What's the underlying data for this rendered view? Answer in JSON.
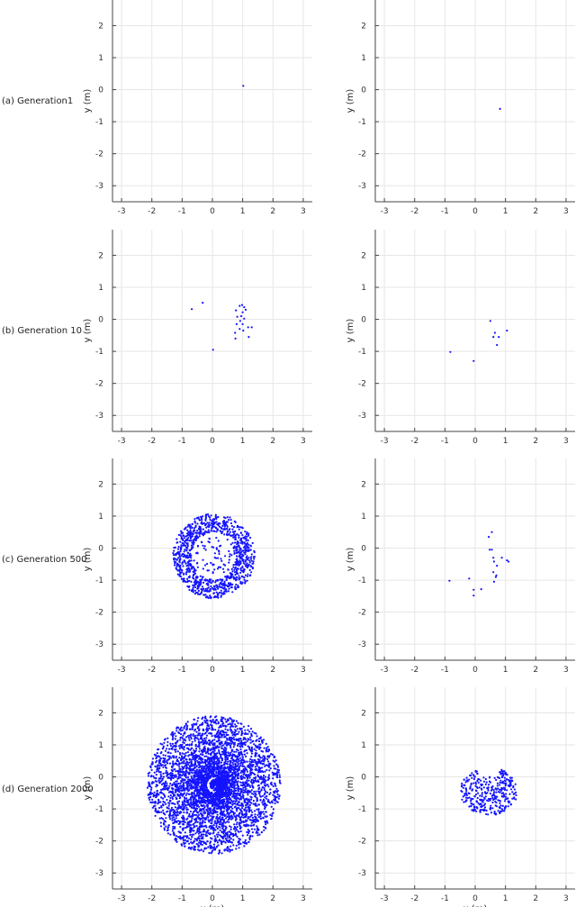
{
  "figure": {
    "rows": [
      "(a) Generation1",
      "(b) Generation 10",
      "(c) Generation 500",
      "(d) Generation 2000"
    ]
  },
  "chart_data": [
    {
      "type": "scatter",
      "xlabel": "",
      "ylabel": "y (m)",
      "xlim": [
        -3.3,
        3.3
      ],
      "ylim": [
        -3.5,
        2.8
      ],
      "grid": true,
      "xticks": [
        -3,
        -2,
        -1,
        0,
        1,
        2,
        3
      ],
      "yticks": [
        -3,
        -2,
        -1,
        0,
        1,
        2
      ],
      "points": [
        [
          1.02,
          0.12
        ]
      ]
    },
    {
      "type": "scatter",
      "xlabel": "",
      "ylabel": "y (m)",
      "xlim": [
        -3.3,
        3.3
      ],
      "ylim": [
        -3.5,
        2.8
      ],
      "grid": true,
      "xticks": [
        -3,
        -2,
        -1,
        0,
        1,
        2,
        3
      ],
      "yticks": [
        -3,
        -2,
        -1,
        0,
        1,
        2
      ],
      "points": [
        [
          0.82,
          -0.6
        ]
      ]
    },
    {
      "type": "scatter",
      "xlabel": "",
      "ylabel": "y (m)",
      "xlim": [
        -3.3,
        3.3
      ],
      "ylim": [
        -3.5,
        2.8
      ],
      "grid": true,
      "xticks": [
        -3,
        -2,
        -1,
        0,
        1,
        2,
        3
      ],
      "yticks": [
        -3,
        -2,
        -1,
        0,
        1,
        2
      ],
      "points": [
        [
          -0.68,
          0.32
        ],
        [
          -0.32,
          0.52
        ],
        [
          0.02,
          -0.95
        ],
        [
          0.78,
          0.28
        ],
        [
          0.82,
          0.08
        ],
        [
          0.8,
          -0.15
        ],
        [
          0.75,
          -0.42
        ],
        [
          0.76,
          -0.6
        ],
        [
          0.9,
          0.42
        ],
        [
          0.98,
          0.45
        ],
        [
          1.05,
          0.38
        ],
        [
          1.0,
          0.22
        ],
        [
          0.95,
          0.1
        ],
        [
          1.05,
          0.02
        ],
        [
          0.92,
          -0.05
        ],
        [
          1.0,
          -0.15
        ],
        [
          0.9,
          -0.3
        ],
        [
          1.02,
          -0.35
        ],
        [
          1.1,
          0.3
        ],
        [
          1.18,
          -0.25
        ],
        [
          1.2,
          -0.55
        ],
        [
          1.3,
          -0.25
        ]
      ]
    },
    {
      "type": "scatter",
      "xlabel": "",
      "ylabel": "y (m)",
      "xlim": [
        -3.3,
        3.3
      ],
      "ylim": [
        -3.5,
        2.8
      ],
      "grid": true,
      "xticks": [
        -3,
        -2,
        -1,
        0,
        1,
        2,
        3
      ],
      "yticks": [
        -3,
        -2,
        -1,
        0,
        1,
        2
      ],
      "points": [
        [
          0.5,
          -0.05
        ],
        [
          0.65,
          -0.42
        ],
        [
          0.6,
          -0.55
        ],
        [
          0.78,
          -0.55
        ],
        [
          0.72,
          -0.8
        ],
        [
          1.05,
          -0.35
        ],
        [
          -0.82,
          -1.02
        ],
        [
          -0.05,
          -1.3
        ]
      ]
    },
    {
      "type": "scatter",
      "xlabel": "",
      "ylabel": "y (m)",
      "xlim": [
        -3.3,
        3.3
      ],
      "ylim": [
        -3.5,
        2.8
      ],
      "grid": true,
      "xticks": [
        -3,
        -2,
        -1,
        0,
        1,
        2,
        3
      ],
      "yticks": [
        -3,
        -2,
        -1,
        0,
        1,
        2
      ],
      "points": [],
      "ring": {
        "center": [
          0.05,
          -0.25
        ],
        "inner": 0.75,
        "outer": 1.35,
        "count": 950,
        "seed": 11,
        "inner_cluster": 90
      }
    },
    {
      "type": "scatter",
      "xlabel": "",
      "ylabel": "y (m)",
      "xlim": [
        -3.3,
        3.3
      ],
      "ylim": [
        -3.5,
        2.8
      ],
      "grid": true,
      "xticks": [
        -3,
        -2,
        -1,
        0,
        1,
        2,
        3
      ],
      "yticks": [
        -3,
        -2,
        -1,
        0,
        1,
        2
      ],
      "points": [
        [
          0.55,
          0.5
        ],
        [
          0.45,
          0.35
        ],
        [
          0.48,
          -0.05
        ],
        [
          0.55,
          -0.05
        ],
        [
          0.6,
          -0.3
        ],
        [
          0.62,
          -0.42
        ],
        [
          0.72,
          -0.55
        ],
        [
          0.6,
          -0.75
        ],
        [
          0.68,
          -0.9
        ],
        [
          0.62,
          -1.05
        ],
        [
          1.05,
          -0.38
        ],
        [
          1.1,
          -0.42
        ],
        [
          0.88,
          -0.3
        ],
        [
          0.7,
          -0.85
        ],
        [
          -0.2,
          -0.95
        ],
        [
          -0.85,
          -1.02
        ],
        [
          0.2,
          -1.28
        ],
        [
          -0.05,
          -1.3
        ],
        [
          -0.05,
          -1.48
        ]
      ]
    },
    {
      "type": "scatter",
      "xlabel": "x (m)",
      "ylabel": "y (m)",
      "xlim": [
        -3.3,
        3.3
      ],
      "ylim": [
        -3.5,
        2.8
      ],
      "grid": true,
      "xticks": [
        -3,
        -2,
        -1,
        0,
        1,
        2,
        3
      ],
      "yticks": [
        -3,
        -2,
        -1,
        0,
        1,
        2
      ],
      "points": [],
      "ring": {
        "center": [
          0.05,
          -0.25
        ],
        "inner": 0.25,
        "outer": 2.2,
        "count": 4200,
        "seed": 23,
        "inner_cluster": 250
      }
    },
    {
      "type": "scatter",
      "xlabel": "x (m)",
      "ylabel": "y (m)",
      "xlim": [
        -3.3,
        3.3
      ],
      "ylim": [
        -3.5,
        2.8
      ],
      "grid": true,
      "xticks": [
        -3,
        -2,
        -1,
        0,
        1,
        2,
        3
      ],
      "yticks": [
        -3,
        -2,
        -1,
        0,
        1,
        2
      ],
      "points": [],
      "blob": {
        "center": [
          0.45,
          -0.45
        ],
        "rx": 0.95,
        "ry": 0.75,
        "count": 380,
        "seed": 37
      }
    }
  ]
}
